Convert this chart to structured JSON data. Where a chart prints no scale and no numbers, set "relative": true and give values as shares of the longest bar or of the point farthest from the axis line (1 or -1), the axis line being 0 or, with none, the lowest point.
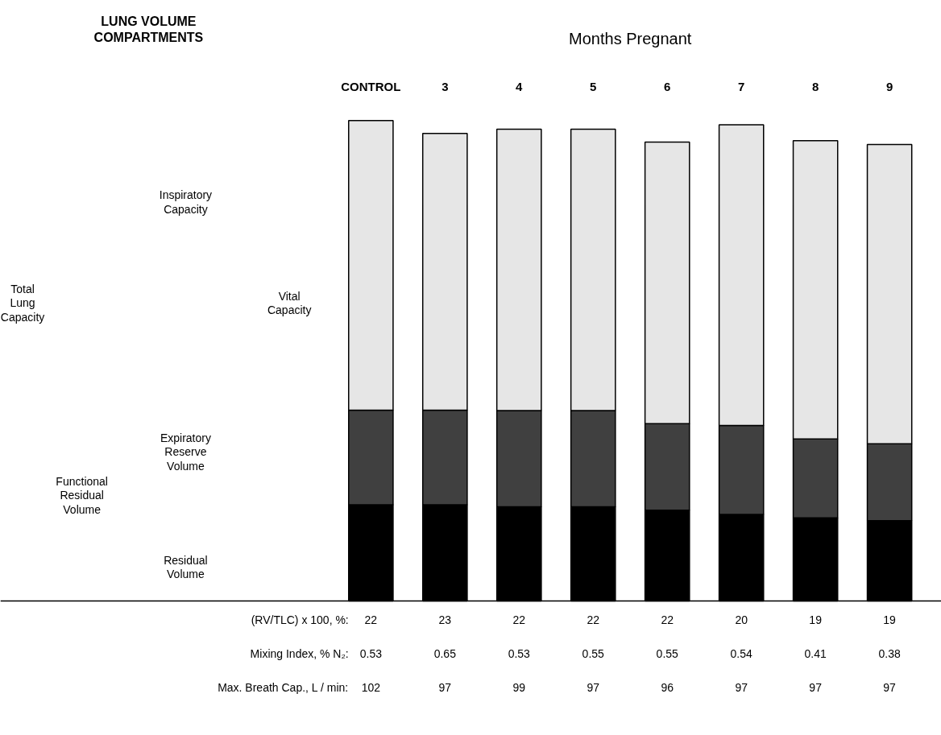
{
  "chart_data": {
    "type": "bar",
    "stacked": true,
    "relative": true,
    "title": "Months Pregnant",
    "subtitle": "LUNG VOLUME COMPARTMENTS",
    "categories": [
      "CONTROL",
      "3",
      "4",
      "5",
      "6",
      "7",
      "8",
      "9"
    ],
    "series": [
      {
        "color": "#000000",
        "values": [
          0.2,
          0.2,
          0.196,
          0.196,
          0.189,
          0.18,
          0.173,
          0.167
        ]
      },
      {
        "color": "#404040",
        "values": [
          0.197,
          0.197,
          0.2,
          0.2,
          0.18,
          0.185,
          0.164,
          0.16
        ]
      },
      {
        "color": "#e6e6e6",
        "values": [
          0.603,
          0.576,
          0.586,
          0.586,
          0.586,
          0.626,
          0.621,
          0.623
        ]
      }
    ],
    "annotations": [
      "Total Lung Capacity",
      "Inspiratory Capacity",
      "Vital Capacity",
      "Expiratory Reserve Volume",
      "Functional Residual Volume",
      "Residual Volume",
      "(RV/TLC) x 100, %:",
      "22",
      "23",
      "22",
      "22",
      "22",
      "20",
      "19",
      "19",
      "Mixing Index, % N₂:",
      "0.53",
      "0.65",
      "0.53",
      "0.55",
      "0.55",
      "0.54",
      "0.41",
      "0.38",
      "Max. Breath Cap., L / min:",
      "102",
      "97",
      "99",
      "97",
      "96",
      "97",
      "97",
      "97"
    ]
  }
}
